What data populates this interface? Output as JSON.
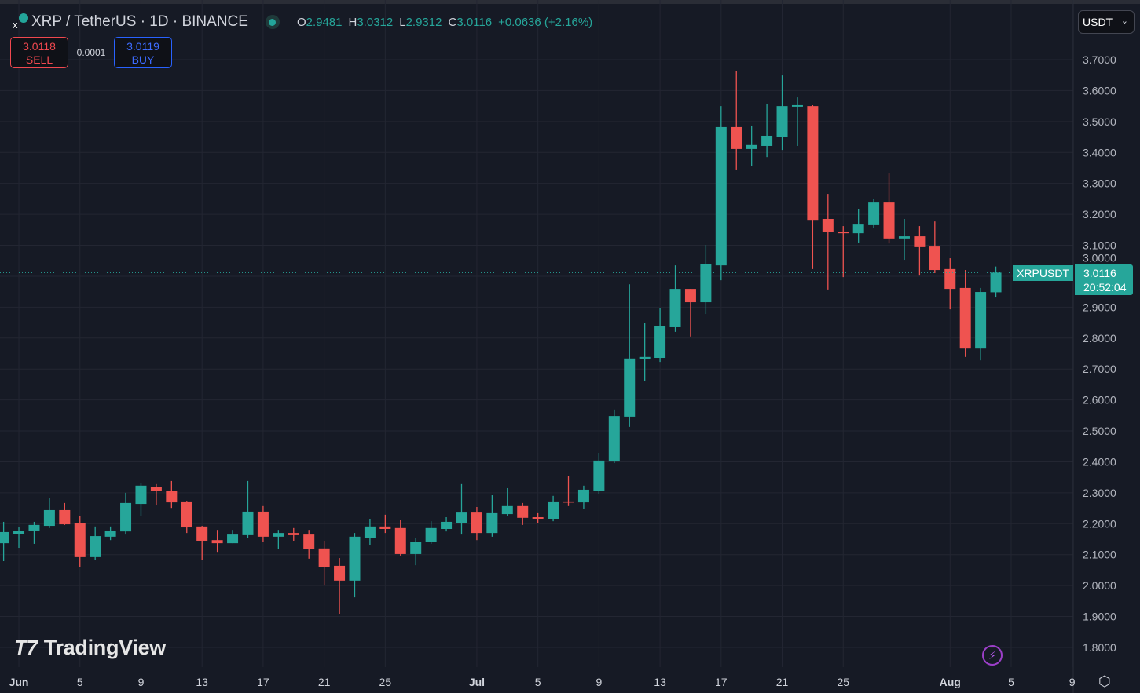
{
  "header": {
    "symbol_title": "XRP / TetherUS · 1D · BINANCE",
    "ohlc": {
      "o_label": "O",
      "o": "2.9481",
      "h_label": "H",
      "h": "3.0312",
      "l_label": "L",
      "l": "2.9312",
      "c_label": "C",
      "c": "3.0116",
      "change": "+0.0636 (+2.16%)"
    },
    "status_color": "#26a69a"
  },
  "trade": {
    "sell_price": "3.0118",
    "sell_label": "SELL",
    "spread": "0.0001",
    "buy_price": "3.0119",
    "buy_label": "BUY"
  },
  "currency_select": {
    "value": "USDT"
  },
  "last_price": {
    "symbol": "XRPUSDT",
    "price": "3.0116",
    "countdown": "20:52:04"
  },
  "watermark": {
    "text": "TradingView"
  },
  "icons": {
    "bolt": "lightning-icon",
    "settings": "gear-icon"
  },
  "colors": {
    "up": "#26a69a",
    "down": "#ef5350",
    "background": "#161a25",
    "grid": "#232632"
  },
  "chart_data": {
    "type": "candlestick",
    "interval": "1D",
    "grid": true,
    "ylim": [
      1.75,
      3.75
    ],
    "yticks": [
      "3.7000",
      "3.6000",
      "3.5000",
      "3.4000",
      "3.3000",
      "3.2000",
      "3.1000",
      "3.0000",
      "2.9000",
      "2.8000",
      "2.7000",
      "2.6000",
      "2.5000",
      "2.4000",
      "2.3000",
      "2.2000",
      "2.1000",
      "2.0000",
      "1.9000",
      "1.8000"
    ],
    "xticks": [
      {
        "label": "Jun",
        "date": "Jun 1"
      },
      {
        "label": "5",
        "date": "Jun 5"
      },
      {
        "label": "9",
        "date": "Jun 9"
      },
      {
        "label": "13",
        "date": "Jun 13"
      },
      {
        "label": "17",
        "date": "Jun 17"
      },
      {
        "label": "21",
        "date": "Jun 21"
      },
      {
        "label": "25",
        "date": "Jun 25"
      },
      {
        "label": "Jul",
        "date": "Jul 1"
      },
      {
        "label": "5",
        "date": "Jul 5"
      },
      {
        "label": "9",
        "date": "Jul 9"
      },
      {
        "label": "13",
        "date": "Jul 13"
      },
      {
        "label": "17",
        "date": "Jul 17"
      },
      {
        "label": "21",
        "date": "Jul 21"
      },
      {
        "label": "25",
        "date": "Jul 25"
      },
      {
        "label": "Aug",
        "date": "Aug 1"
      },
      {
        "label": "5",
        "date": "Aug 5"
      },
      {
        "label": "9",
        "date": "Aug 9"
      }
    ],
    "candles": [
      {
        "d": "May 31",
        "o": 2.137,
        "h": 2.206,
        "l": 2.079,
        "c": 2.173
      },
      {
        "d": "Jun 1",
        "o": 2.166,
        "h": 2.188,
        "l": 2.122,
        "c": 2.176
      },
      {
        "d": "Jun 2",
        "o": 2.178,
        "h": 2.206,
        "l": 2.135,
        "c": 2.196
      },
      {
        "d": "Jun 3",
        "o": 2.193,
        "h": 2.282,
        "l": 2.186,
        "c": 2.244
      },
      {
        "d": "Jun 4",
        "o": 2.244,
        "h": 2.267,
        "l": 2.196,
        "c": 2.198
      },
      {
        "d": "Jun 5",
        "o": 2.201,
        "h": 2.226,
        "l": 2.059,
        "c": 2.092
      },
      {
        "d": "Jun 6",
        "o": 2.092,
        "h": 2.191,
        "l": 2.082,
        "c": 2.16
      },
      {
        "d": "Jun 7",
        "o": 2.158,
        "h": 2.191,
        "l": 2.147,
        "c": 2.178
      },
      {
        "d": "Jun 8",
        "o": 2.175,
        "h": 2.3,
        "l": 2.165,
        "c": 2.267
      },
      {
        "d": "Jun 9",
        "o": 2.264,
        "h": 2.33,
        "l": 2.224,
        "c": 2.323
      },
      {
        "d": "Jun 10",
        "o": 2.32,
        "h": 2.328,
        "l": 2.259,
        "c": 2.305
      },
      {
        "d": "Jun 11",
        "o": 2.307,
        "h": 2.338,
        "l": 2.251,
        "c": 2.269
      },
      {
        "d": "Jun 12",
        "o": 2.272,
        "h": 2.274,
        "l": 2.17,
        "c": 2.188
      },
      {
        "d": "Jun 13",
        "o": 2.191,
        "h": 2.193,
        "l": 2.084,
        "c": 2.145
      },
      {
        "d": "Jun 14",
        "o": 2.147,
        "h": 2.18,
        "l": 2.109,
        "c": 2.137
      },
      {
        "d": "Jun 15",
        "o": 2.137,
        "h": 2.18,
        "l": 2.137,
        "c": 2.165
      },
      {
        "d": "Jun 16",
        "o": 2.163,
        "h": 2.338,
        "l": 2.153,
        "c": 2.239
      },
      {
        "d": "Jun 17",
        "o": 2.239,
        "h": 2.257,
        "l": 2.142,
        "c": 2.158
      },
      {
        "d": "Jun 18",
        "o": 2.158,
        "h": 2.18,
        "l": 2.117,
        "c": 2.17
      },
      {
        "d": "Jun 19",
        "o": 2.17,
        "h": 2.186,
        "l": 2.145,
        "c": 2.163
      },
      {
        "d": "Jun 20",
        "o": 2.165,
        "h": 2.18,
        "l": 2.087,
        "c": 2.117
      },
      {
        "d": "Jun 21",
        "o": 2.12,
        "h": 2.145,
        "l": 2.0,
        "c": 2.061
      },
      {
        "d": "Jun 22",
        "o": 2.064,
        "h": 2.089,
        "l": 1.909,
        "c": 2.016
      },
      {
        "d": "Jun 23",
        "o": 2.016,
        "h": 2.17,
        "l": 1.962,
        "c": 2.158
      },
      {
        "d": "Jun 24",
        "o": 2.155,
        "h": 2.216,
        "l": 2.132,
        "c": 2.191
      },
      {
        "d": "Jun 25",
        "o": 2.191,
        "h": 2.229,
        "l": 2.17,
        "c": 2.183
      },
      {
        "d": "Jun 26",
        "o": 2.186,
        "h": 2.213,
        "l": 2.097,
        "c": 2.102
      },
      {
        "d": "Jun 27",
        "o": 2.102,
        "h": 2.155,
        "l": 2.066,
        "c": 2.142
      },
      {
        "d": "Jun 28",
        "o": 2.14,
        "h": 2.208,
        "l": 2.135,
        "c": 2.186
      },
      {
        "d": "Jun 29",
        "o": 2.183,
        "h": 2.221,
        "l": 2.175,
        "c": 2.206
      },
      {
        "d": "Jun 30",
        "o": 2.203,
        "h": 2.328,
        "l": 2.165,
        "c": 2.236
      },
      {
        "d": "Jul 1",
        "o": 2.236,
        "h": 2.254,
        "l": 2.147,
        "c": 2.17
      },
      {
        "d": "Jul 2",
        "o": 2.17,
        "h": 2.292,
        "l": 2.158,
        "c": 2.234
      },
      {
        "d": "Jul 3",
        "o": 2.231,
        "h": 2.315,
        "l": 2.224,
        "c": 2.257
      },
      {
        "d": "Jul 4",
        "o": 2.257,
        "h": 2.267,
        "l": 2.196,
        "c": 2.219
      },
      {
        "d": "Jul 5",
        "o": 2.221,
        "h": 2.234,
        "l": 2.201,
        "c": 2.216
      },
      {
        "d": "Jul 6",
        "o": 2.216,
        "h": 2.29,
        "l": 2.208,
        "c": 2.272
      },
      {
        "d": "Jul 7",
        "o": 2.272,
        "h": 2.353,
        "l": 2.257,
        "c": 2.269
      },
      {
        "d": "Jul 8",
        "o": 2.269,
        "h": 2.323,
        "l": 2.249,
        "c": 2.31
      },
      {
        "d": "Jul 9",
        "o": 2.307,
        "h": 2.429,
        "l": 2.297,
        "c": 2.404
      },
      {
        "d": "Jul 10",
        "o": 2.401,
        "h": 2.569,
        "l": 2.396,
        "c": 2.548
      },
      {
        "d": "Jul 11",
        "o": 2.546,
        "h": 2.974,
        "l": 2.513,
        "c": 2.734
      },
      {
        "d": "Jul 12",
        "o": 2.731,
        "h": 2.848,
        "l": 2.662,
        "c": 2.739
      },
      {
        "d": "Jul 13",
        "o": 2.736,
        "h": 2.896,
        "l": 2.723,
        "c": 2.838
      },
      {
        "d": "Jul 14",
        "o": 2.835,
        "h": 3.035,
        "l": 2.82,
        "c": 2.959
      },
      {
        "d": "Jul 15",
        "o": 2.959,
        "h": 2.959,
        "l": 2.805,
        "c": 2.916
      },
      {
        "d": "Jul 16",
        "o": 2.916,
        "h": 3.101,
        "l": 2.878,
        "c": 3.038
      },
      {
        "d": "Jul 17",
        "o": 3.035,
        "h": 3.55,
        "l": 2.987,
        "c": 3.482
      },
      {
        "d": "Jul 18",
        "o": 3.482,
        "h": 3.662,
        "l": 3.345,
        "c": 3.411
      },
      {
        "d": "Jul 19",
        "o": 3.411,
        "h": 3.487,
        "l": 3.355,
        "c": 3.424
      },
      {
        "d": "Jul 20",
        "o": 3.421,
        "h": 3.558,
        "l": 3.385,
        "c": 3.454
      },
      {
        "d": "Jul 21",
        "o": 3.451,
        "h": 3.649,
        "l": 3.408,
        "c": 3.55
      },
      {
        "d": "Jul 22",
        "o": 3.548,
        "h": 3.578,
        "l": 3.421,
        "c": 3.553
      },
      {
        "d": "Jul 23",
        "o": 3.55,
        "h": 3.553,
        "l": 3.023,
        "c": 3.182
      },
      {
        "d": "Jul 24",
        "o": 3.185,
        "h": 3.266,
        "l": 2.957,
        "c": 3.142
      },
      {
        "d": "Jul 25",
        "o": 3.144,
        "h": 3.162,
        "l": 2.997,
        "c": 3.139
      },
      {
        "d": "Jul 26",
        "o": 3.139,
        "h": 3.218,
        "l": 3.109,
        "c": 3.167
      },
      {
        "d": "Jul 27",
        "o": 3.165,
        "h": 3.251,
        "l": 3.157,
        "c": 3.238
      },
      {
        "d": "Jul 28",
        "o": 3.238,
        "h": 3.332,
        "l": 3.106,
        "c": 3.122
      },
      {
        "d": "Jul 29",
        "o": 3.122,
        "h": 3.185,
        "l": 3.053,
        "c": 3.129
      },
      {
        "d": "Jul 30",
        "o": 3.129,
        "h": 3.162,
        "l": 3.002,
        "c": 3.094
      },
      {
        "d": "Jul 31",
        "o": 3.096,
        "h": 3.177,
        "l": 3.01,
        "c": 3.02
      },
      {
        "d": "Aug 1",
        "o": 3.023,
        "h": 3.058,
        "l": 2.893,
        "c": 2.959
      },
      {
        "d": "Aug 2",
        "o": 2.962,
        "h": 3.02,
        "l": 2.739,
        "c": 2.766
      },
      {
        "d": "Aug 3",
        "o": 2.766,
        "h": 2.962,
        "l": 2.728,
        "c": 2.949
      },
      {
        "d": "Aug 4",
        "o": 2.9481,
        "h": 3.0312,
        "l": 2.9312,
        "c": 3.0116
      }
    ],
    "last_price": 3.0116
  }
}
